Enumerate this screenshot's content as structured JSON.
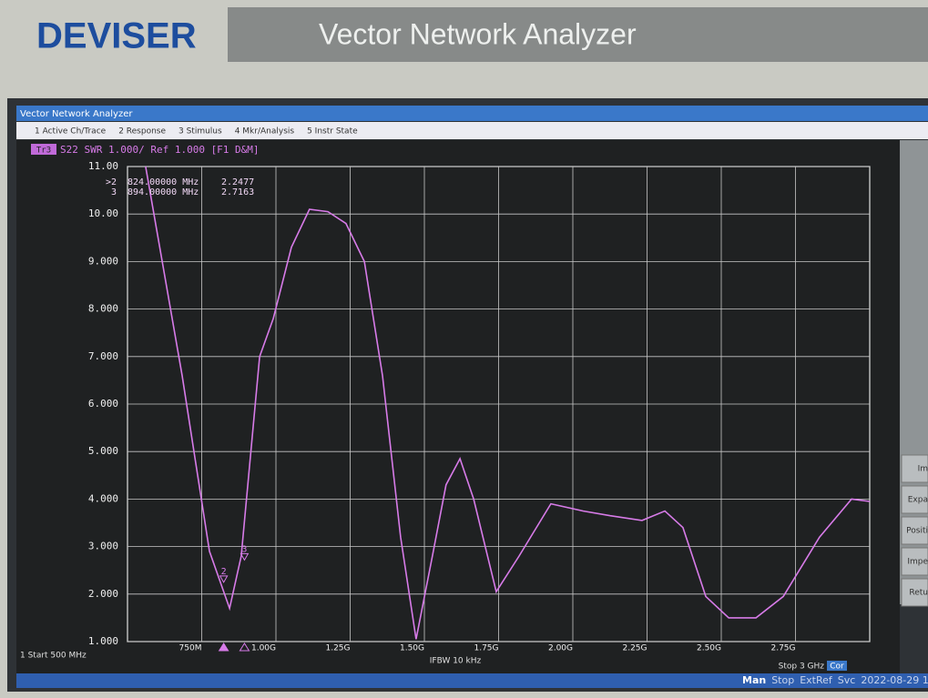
{
  "bezel": {
    "brand": "DEVISER",
    "model": "Vector Network Analyzer"
  },
  "window": {
    "title": "Vector Network Analyzer",
    "menu": [
      "1 Active Ch/Trace",
      "2 Response",
      "3 Stimulus",
      "4 Mkr/Analysis",
      "5 Instr State"
    ]
  },
  "chart_data": {
    "type": "line",
    "trace_tag": "Tr3",
    "title": "S22 SWR 1.000/ Ref 1.000 [F1 D&M]",
    "x": [
      561,
      684,
      776,
      844,
      883,
      945,
      991,
      1052,
      1113,
      1175,
      1236,
      1298,
      1359,
      1420,
      1472,
      1527,
      1573,
      1620,
      1666,
      1742,
      1819,
      1926,
      2034,
      2126,
      2233,
      2310,
      2371,
      2448,
      2525,
      2617,
      2709,
      2831,
      2939,
      3000
    ],
    "series": [
      {
        "name": "S22",
        "color": "#d77be8",
        "values": [
          11,
          6.6,
          2.9,
          1.7,
          2.8,
          7.0,
          7.8,
          9.3,
          10.1,
          10.05,
          9.8,
          9.0,
          6.6,
          3.2,
          1.05,
          2.8,
          4.3,
          4.85,
          4.0,
          2.05,
          2.8,
          3.9,
          3.75,
          3.65,
          3.55,
          3.75,
          3.4,
          1.95,
          1.5,
          1.5,
          1.95,
          3.2,
          4.0,
          3.95
        ]
      }
    ],
    "xlim": [
      500,
      3000
    ],
    "xticks": [
      {
        "value": 750,
        "label": "750M"
      },
      {
        "value": 1000,
        "label": "1.00G"
      },
      {
        "value": 1250,
        "label": "1.25G"
      },
      {
        "value": 1500,
        "label": "1.50G"
      },
      {
        "value": 1750,
        "label": "1.75G"
      },
      {
        "value": 2000,
        "label": "2.00G"
      },
      {
        "value": 2250,
        "label": "2.25G"
      },
      {
        "value": 2500,
        "label": "2.50G"
      },
      {
        "value": 2750,
        "label": "2.75G"
      }
    ],
    "ylim": [
      1,
      11
    ],
    "yticks": [
      {
        "value": 1,
        "label": "1.000"
      },
      {
        "value": 2,
        "label": "2.000"
      },
      {
        "value": 3,
        "label": "3.000"
      },
      {
        "value": 4,
        "label": "4.000"
      },
      {
        "value": 5,
        "label": "5.000"
      },
      {
        "value": 6,
        "label": "6.000"
      },
      {
        "value": 7,
        "label": "7.000"
      },
      {
        "value": 8,
        "label": "8.000"
      },
      {
        "value": 9,
        "label": "9.000"
      },
      {
        "value": 10,
        "label": "10.00"
      },
      {
        "value": 11,
        "label": "11.00"
      }
    ],
    "grid": true,
    "markers": [
      {
        "name": ">2",
        "trace_label": "2",
        "x": 824,
        "x_label": "824.00000 MHz",
        "value": 2.2477
      },
      {
        "name": "3",
        "trace_label": "3",
        "x": 894,
        "x_label": "894.00000 MHz",
        "value": 2.7163
      }
    ]
  },
  "status": {
    "start": "1 Start 500 MHz",
    "ifbw": "IFBW 10 kHz",
    "stop": "Stop 3 GHz",
    "cor": "Cor",
    "bar": [
      "Man",
      "Stop",
      "ExtRef",
      "Svc",
      "2022-08-29 1"
    ]
  },
  "softkeys": [
    "Im",
    "Expa",
    "Positi",
    "Impe",
    "Retu"
  ]
}
